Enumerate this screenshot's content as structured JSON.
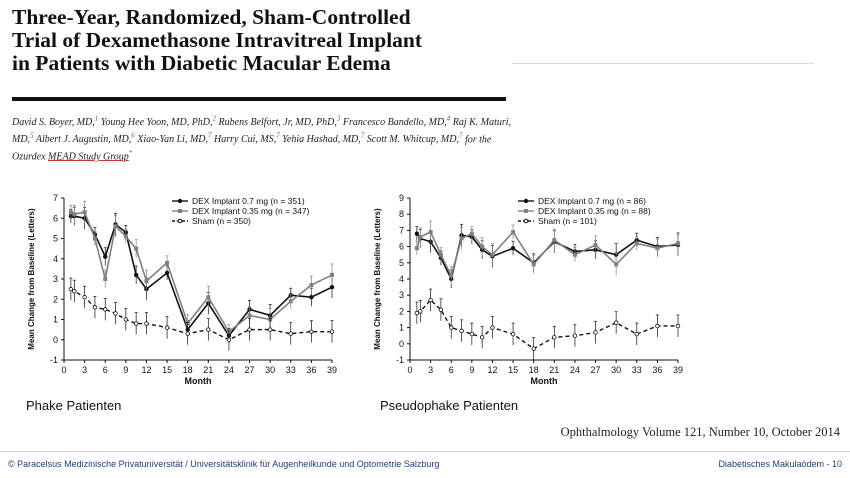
{
  "paper": {
    "title": "Three-Year, Randomized, Sham-Controlled\nTrial of Dexamethasone Intravitreal Implant\nin Patients with Diabetic Macular Edema",
    "authors": [
      {
        "name": "David S. Boyer, MD,",
        "sup": "1"
      },
      {
        "name": " Young Hee Yoon, MD, PhD,",
        "sup": "2"
      },
      {
        "name": " Rubens Belfort, Jr, MD, PhD,",
        "sup": "3"
      },
      {
        "name": " Francesco Bandello, MD,",
        "sup": "4"
      },
      {
        "name": " Raj K. Maturi, MD,",
        "sup": "5"
      },
      {
        "name": " Albert J. Augustin, MD,",
        "sup": "6"
      },
      {
        "name": " Xiao-Yan Li, MD,",
        "sup": "7"
      },
      {
        "name": " Harry Cui, MS,",
        "sup": "7"
      },
      {
        "name": " Yehia Hashad, MD,",
        "sup": "7"
      },
      {
        "name": " Scott M. Whitcup, MD,",
        "sup": "7"
      }
    ],
    "author_tail": " for the Ozurdex ",
    "study_group": "MEAD Study Group",
    "study_group_sup": "*",
    "journal": "Ophthalmology   Volume 121, Number 10, October 2014"
  },
  "footer": {
    "left": "© Paracelsus Medizinische Privatuniversität / Universitätsklinik für Augenheilkunde und Optometrie Salzburg",
    "right": "Diabetisches Makulaödem - 10"
  },
  "chart_data": [
    {
      "type": "line",
      "caption": "Phake Patienten",
      "xlabel": "Month",
      "ylabel": "Mean Change from Baseline (Letters)",
      "xticks": [
        0,
        3,
        6,
        9,
        12,
        15,
        18,
        21,
        24,
        27,
        30,
        33,
        36,
        39
      ],
      "yticks": [
        -1,
        0,
        1,
        2,
        3,
        4,
        5,
        6,
        7
      ],
      "xlim": [
        0,
        39
      ],
      "ylim": [
        -1,
        7
      ],
      "legend_position": "top-right",
      "series": [
        {
          "name": "DEX Implant 0.7 mg (n = 351)",
          "style": "solid-filled",
          "color": "#111111",
          "x": [
            1,
            1.5,
            3,
            4.5,
            6,
            7.5,
            9,
            10.5,
            12,
            15,
            18,
            21,
            24,
            27,
            30,
            33,
            36,
            39
          ],
          "y": [
            6.1,
            6.1,
            6.0,
            5.2,
            4.1,
            5.7,
            5.3,
            3.2,
            2.5,
            3.3,
            0.5,
            1.8,
            0.2,
            1.5,
            1.2,
            2.2,
            2.1,
            2.6
          ]
        },
        {
          "name": "DEX Implant 0.35 mg (n = 347)",
          "style": "solid-square",
          "color": "#808080",
          "x": [
            1,
            1.5,
            3,
            4.5,
            6,
            7.5,
            9,
            10.5,
            12,
            15,
            18,
            21,
            24,
            27,
            30,
            33,
            36,
            39
          ],
          "y": [
            6.3,
            6.2,
            6.3,
            5.0,
            3.0,
            5.6,
            5.1,
            4.5,
            2.9,
            3.8,
            0.8,
            2.1,
            0.4,
            1.2,
            1.0,
            1.9,
            2.7,
            3.2
          ]
        },
        {
          "name": "Sham (n = 350)",
          "style": "dashed-open",
          "color": "#111111",
          "x": [
            1,
            1.5,
            3,
            4.5,
            6,
            7.5,
            9,
            10.5,
            12,
            15,
            18,
            21,
            24,
            27,
            30,
            33,
            36,
            39
          ],
          "y": [
            2.5,
            2.4,
            2.1,
            1.6,
            1.5,
            1.3,
            1.0,
            0.8,
            0.8,
            0.6,
            0.3,
            0.5,
            0.0,
            0.5,
            0.5,
            0.3,
            0.4,
            0.4
          ]
        }
      ]
    },
    {
      "type": "line",
      "caption": "Pseudophake Patienten",
      "xlabel": "Month",
      "ylabel": "Mean Change from Baseline (Letters)",
      "xticks": [
        0,
        3,
        6,
        9,
        12,
        15,
        18,
        21,
        24,
        27,
        30,
        33,
        36,
        39
      ],
      "yticks": [
        -1,
        0,
        1,
        2,
        3,
        4,
        5,
        6,
        7,
        8,
        9
      ],
      "xlim": [
        0,
        39
      ],
      "ylim": [
        -1,
        9
      ],
      "legend_position": "top-right",
      "series": [
        {
          "name": "DEX Implant 0.7 mg (n = 86)",
          "style": "solid-filled",
          "color": "#111111",
          "x": [
            1,
            1.5,
            3,
            4.5,
            6,
            7.5,
            9,
            10.5,
            12,
            15,
            18,
            21,
            24,
            27,
            30,
            33,
            36,
            39
          ],
          "y": [
            6.8,
            6.5,
            6.3,
            5.3,
            4.0,
            6.7,
            6.6,
            5.8,
            5.4,
            5.9,
            5.0,
            6.3,
            5.7,
            5.8,
            5.5,
            6.4,
            6.0,
            6.1
          ]
        },
        {
          "name": "DEX Implant 0.35 mg (n = 88)",
          "style": "solid-square",
          "color": "#808080",
          "x": [
            1,
            1.5,
            3,
            4.5,
            6,
            7.5,
            9,
            10.5,
            12,
            15,
            18,
            21,
            24,
            27,
            30,
            33,
            36,
            39
          ],
          "y": [
            5.9,
            6.6,
            6.9,
            5.5,
            4.2,
            6.5,
            6.8,
            6.0,
            5.5,
            6.9,
            4.9,
            6.4,
            5.5,
            6.1,
            4.9,
            6.2,
            5.9,
            6.2
          ]
        },
        {
          "name": "Sham (n = 101)",
          "style": "dashed-open",
          "color": "#111111",
          "x": [
            1,
            1.5,
            3,
            4.5,
            6,
            7.5,
            9,
            10.5,
            12,
            15,
            18,
            21,
            24,
            27,
            30,
            33,
            36,
            39
          ],
          "y": [
            1.9,
            2.0,
            2.7,
            2.1,
            1.0,
            0.8,
            0.6,
            0.4,
            1.0,
            0.6,
            -0.3,
            0.4,
            0.5,
            0.7,
            1.3,
            0.6,
            1.1,
            1.1
          ]
        }
      ]
    }
  ]
}
